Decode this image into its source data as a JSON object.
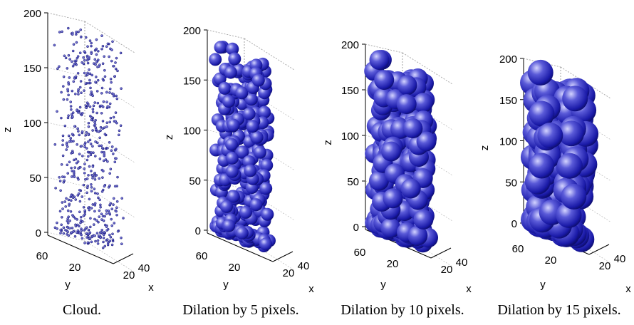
{
  "chart_data": [
    {
      "type": "scatter3d",
      "title": "",
      "caption": "Cloud.",
      "marker_radius": 1.6,
      "zlabel": "z",
      "ylabel": "y",
      "xlabel": "x",
      "zticks": [
        "0",
        "50",
        "100",
        "150",
        "200"
      ],
      "yticks": [
        "60",
        "20"
      ],
      "xticks": [
        "20",
        "40"
      ],
      "zlim": [
        0,
        200
      ],
      "grid": true
    },
    {
      "type": "scatter3d",
      "title": "",
      "caption": "Dilation by 5 pixels.",
      "marker_radius": 9,
      "zlabel": "z",
      "ylabel": "y",
      "xlabel": "x",
      "zticks": [
        "0",
        "50",
        "100",
        "150",
        "200"
      ],
      "yticks": [
        "60",
        "20"
      ],
      "xticks": [
        "20",
        "40"
      ],
      "zlim": [
        0,
        200
      ],
      "grid": true
    },
    {
      "type": "scatter3d",
      "title": "",
      "caption": "Dilation by 10 pixels.",
      "marker_radius": 14,
      "zlabel": "z",
      "ylabel": "y",
      "xlabel": "x",
      "zticks": [
        "0",
        "50",
        "100",
        "150",
        "200"
      ],
      "yticks": [
        "60",
        "20"
      ],
      "xticks": [
        "20",
        "40"
      ],
      "zlim": [
        0,
        200
      ],
      "grid": true
    },
    {
      "type": "scatter3d",
      "title": "",
      "caption": "Dilation by 15 pixels.",
      "marker_radius": 18,
      "zlabel": "z",
      "ylabel": "y",
      "xlabel": "x",
      "zticks": [
        "0",
        "50",
        "100",
        "150",
        "200"
      ],
      "yticks": [
        "60",
        "20"
      ],
      "xticks": [
        "20",
        "40"
      ],
      "zlim": [
        0,
        200
      ],
      "grid": true
    }
  ],
  "colors": {
    "marker": "#1a1aa8",
    "marker_highlight": "#c8c8ff",
    "axis": "#000000",
    "grid": "#8a8a8a"
  }
}
